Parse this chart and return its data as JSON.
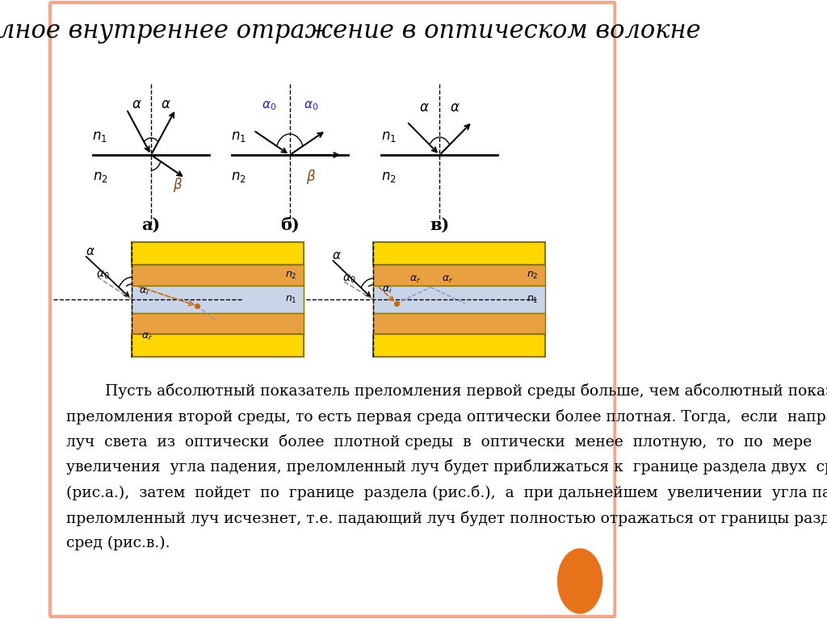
{
  "title": "Полное внутреннее отражение в оптическом волокне",
  "title_fontsize": 22,
  "bg_color": "#FFFFFF",
  "border_color": "#F4A58A",
  "text_lines": [
    "        Пусть абсолютный показатель преломления первой среды больше, чем абсолютный показатель",
    "преломления второй среды, то есть первая среда оптически более плотная. Тогда,  если  направить",
    "луч  света  из  оптически  более  плотной среды  в  оптически  менее  плотную,  то  по  мере",
    "увеличения  угла падения, преломленный луч будет приближаться к  границе раздела двух  сред",
    "(рис.а.),  затем  пойдет  по  границе  раздела (рис.б.),  а  при дальнейшем  увеличении  угла падения",
    "преломленный луч исчезнет, т.е. падающий луч будет полностью отражаться от границы раздела двух",
    "сред (рис.в.)."
  ],
  "text_fontsize": 13.5,
  "yellow_color": "#FFD700",
  "orange_color": "#E8A040",
  "blue_gray_color": "#C8D4E8",
  "circle_color": "#E8721A"
}
